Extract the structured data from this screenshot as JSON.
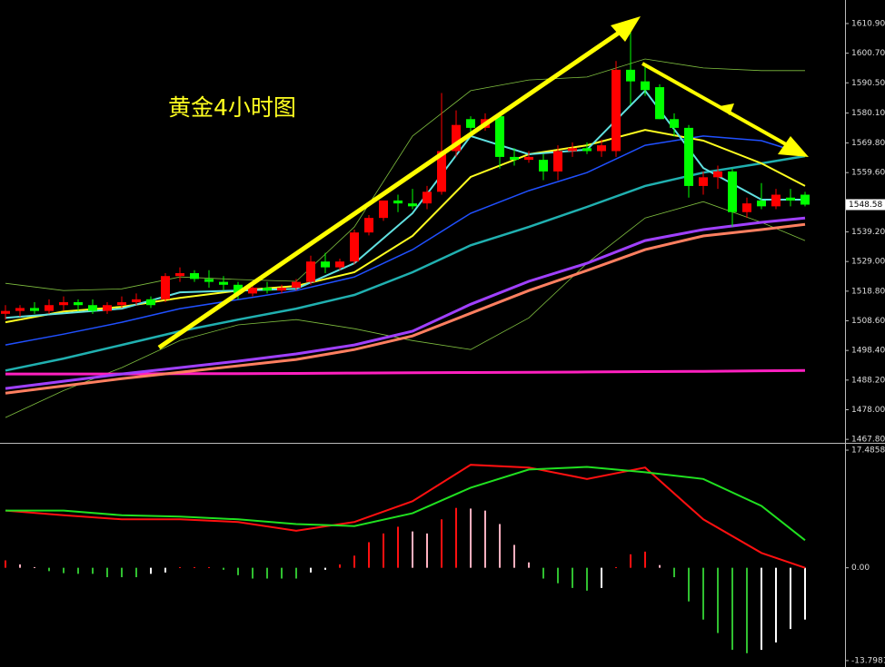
{
  "chart_data": [
    {
      "type": "candlestick",
      "title": "黄金4小时图",
      "xlim": [
        -0.375,
        57.75
      ],
      "ylim": [
        1466.6,
        1619.0
      ],
      "yticks": [
        {
          "value": 1610.9,
          "label": "1610.90"
        },
        {
          "value": 1600.7,
          "label": "1600.70"
        },
        {
          "value": 1590.5,
          "label": "1590.50"
        },
        {
          "value": 1580.1,
          "label": "1580.10"
        },
        {
          "value": 1569.8,
          "label": "1569.80"
        },
        {
          "value": 1559.6,
          "label": "1559.60"
        },
        {
          "value": 1539.2,
          "label": "1539.20"
        },
        {
          "value": 1529,
          "label": "1529.00"
        },
        {
          "value": 1518.8,
          "label": "1518.80"
        },
        {
          "value": 1508.6,
          "label": "1508.60"
        },
        {
          "value": 1498.4,
          "label": "1498.40"
        },
        {
          "value": 1488.2,
          "label": "1488.20"
        },
        {
          "value": 1478,
          "label": "1478.00"
        },
        {
          "value": 1467.8,
          "label": "1467.80"
        }
      ],
      "current_price": {
        "value": 1548.58,
        "label": "1548.58"
      },
      "up_color": "#ff0000",
      "down_color": "#00ff00",
      "candles": {
        "open": [
          1511,
          1512,
          1513,
          1512,
          1514,
          1515,
          1514,
          1512,
          1514,
          1515,
          1516,
          1516,
          1524,
          1525,
          1523,
          1522,
          1521,
          1518,
          1520,
          1519,
          1520,
          1522,
          1529,
          1527,
          1529,
          1539,
          1544,
          1550,
          1549,
          1549,
          1553,
          1567,
          1578,
          1575,
          1579,
          1565,
          1564,
          1564,
          1560,
          1567,
          1568,
          1567,
          1567,
          1595,
          1591,
          1589,
          1578,
          1575,
          1555,
          1558,
          1560,
          1546,
          1550,
          1548,
          1551,
          1552
        ],
        "high": [
          1514,
          1514,
          1515,
          1516,
          1517,
          1516,
          1516,
          1515,
          1517,
          1518,
          1517,
          1525,
          1527,
          1526,
          1526,
          1524,
          1522,
          1521,
          1522,
          1521,
          1523,
          1531,
          1532,
          1530,
          1540,
          1545,
          1550,
          1552,
          1554,
          1555,
          1587,
          1581,
          1579,
          1580,
          1580,
          1568,
          1567,
          1566,
          1569,
          1570,
          1570,
          1571,
          1598,
          1608,
          1596,
          1590,
          1580,
          1576,
          1560,
          1562,
          1561,
          1551,
          1556,
          1554,
          1554,
          1553
        ],
        "low": [
          1509,
          1510,
          1511,
          1511,
          1512,
          1512,
          1511,
          1511,
          1513,
          1514,
          1513,
          1515,
          1522,
          1522,
          1520,
          1519,
          1516,
          1517,
          1518,
          1518,
          1519,
          1521,
          1525,
          1526,
          1528,
          1538,
          1543,
          1546,
          1547,
          1547,
          1552,
          1565,
          1573,
          1574,
          1561,
          1562,
          1563,
          1557,
          1557,
          1565,
          1566,
          1565,
          1565,
          1583,
          1586,
          1578,
          1572,
          1551,
          1552,
          1554,
          1541,
          1544,
          1547,
          1547,
          1548,
          1548
        ],
        "close": [
          1512,
          1513,
          1512,
          1514,
          1515,
          1514,
          1512,
          1514,
          1515,
          1516,
          1514,
          1524,
          1525,
          1523,
          1522,
          1521,
          1518,
          1520,
          1519,
          1520,
          1522,
          1529,
          1527,
          1529,
          1539,
          1544,
          1550,
          1549,
          1548,
          1553,
          1567,
          1576,
          1575,
          1578,
          1565,
          1564,
          1565,
          1560,
          1567,
          1568,
          1567,
          1569,
          1595,
          1591,
          1588,
          1578,
          1575,
          1555,
          1558,
          1560,
          1546,
          1549,
          1548,
          1552,
          1550,
          1548.58
        ]
      },
      "overlays": {
        "x": [
          0,
          4,
          8,
          12,
          16,
          20,
          24,
          28,
          32,
          36,
          40,
          44,
          48,
          52,
          55
        ],
        "series": [
          {
            "color": "#7fbf3f",
            "width": 0.8,
            "values": [
              1521.5,
              1519,
              1519.6,
              1523.7,
              1522.8,
              1522.2,
              1540.9,
              1572.2,
              1587.8,
              1591.5,
              1592.5,
              1598.7,
              1595.6,
              1594.7,
              1594.7
            ]
          },
          {
            "color": "#7fbf3f",
            "width": 0.8,
            "values": [
              1475.3,
              1484.6,
              1492.5,
              1501.8,
              1507.2,
              1509,
              1505.9,
              1501.8,
              1498.7,
              1509.6,
              1528.4,
              1544,
              1549.6,
              1542.5,
              1536.2
            ]
          },
          {
            "color": "#ff20c0",
            "width": 3,
            "values": [
              1490.3,
              1490.3,
              1490.3,
              1490.4,
              1490.4,
              1490.5,
              1490.6,
              1490.7,
              1490.8,
              1490.9,
              1491,
              1491.1,
              1491.2,
              1491.4,
              1491.5
            ]
          },
          {
            "color": "#ff7f60",
            "width": 3,
            "values": [
              1483.7,
              1486.2,
              1488.7,
              1490.9,
              1493.1,
              1495.3,
              1498.7,
              1503.4,
              1511.2,
              1519,
              1525.9,
              1533.1,
              1537.8,
              1540,
              1541.8
            ]
          },
          {
            "color": "#a040ff",
            "width": 3,
            "values": [
              1485.3,
              1487.8,
              1490.3,
              1492.5,
              1494.7,
              1497.2,
              1500.3,
              1505,
              1514.3,
              1522.2,
              1528.4,
              1536.2,
              1540,
              1542.5,
              1544
            ]
          },
          {
            "color": "#20b0b0",
            "width": 2.5,
            "values": [
              1491.5,
              1495.6,
              1500.3,
              1505,
              1509,
              1512.8,
              1517.5,
              1525.3,
              1534.6,
              1540.9,
              1547.8,
              1555,
              1559.6,
              1562.8,
              1565.3
            ]
          },
          {
            "color": "#2050ff",
            "width": 1.5,
            "values": [
              1500.3,
              1504,
              1508.1,
              1512.8,
              1515.9,
              1519,
              1523.7,
              1533.1,
              1545.6,
              1553.4,
              1559.6,
              1569,
              1572.2,
              1570.6,
              1565.9
            ]
          },
          {
            "color": "#ffff20",
            "width": 2,
            "values": [
              1508.1,
              1511.8,
              1513.4,
              1516.5,
              1519,
              1520.6,
              1525.3,
              1537.8,
              1558.1,
              1565.9,
              1569,
              1574.3,
              1570.6,
              1562.8,
              1555
            ]
          },
          {
            "color": "#60e0e0",
            "width": 2,
            "values": [
              1509.6,
              1511.2,
              1512.8,
              1518.4,
              1519,
              1519.6,
              1528.4,
              1545.6,
              1572.2,
              1565.9,
              1567.5,
              1587.8,
              1561.2,
              1550.3,
              1550.3
            ]
          }
        ]
      }
    },
    {
      "type": "bar",
      "xlim": [
        -0.375,
        57.75
      ],
      "ylim": [
        -14.75,
        18.3
      ],
      "yticks": [
        17.4858,
        {
          "value": 0,
          "label": "0.00"
        },
        -13.7981
      ],
      "bar_colors": {
        "up_rising": "#ff1010",
        "up_falling": "#ffb0c0",
        "down_falling": "#30c030",
        "down_rising": "#ffffff"
      },
      "values": [
        1.1,
        0.5,
        0.1,
        -0.5,
        -0.8,
        -0.9,
        -0.9,
        -1.4,
        -1.4,
        -1.4,
        -0.9,
        -0.7,
        0.1,
        0.1,
        0.1,
        -0.3,
        -1.1,
        -1.6,
        -1.6,
        -1.6,
        -1.6,
        -0.7,
        -0.3,
        0.5,
        1.8,
        3.8,
        5.1,
        6.1,
        5.4,
        5.1,
        7.2,
        8.9,
        8.8,
        8.5,
        6.5,
        3.4,
        0.8,
        -1.6,
        -2.3,
        -3,
        -3.4,
        -3,
        0.1,
        2,
        2.4,
        0.4,
        -1.4,
        -5,
        -7.7,
        -9.7,
        -12.2,
        -12.7,
        -12.2,
        -11.1,
        -9.1,
        -7.7
      ],
      "lines": {
        "x": [
          0,
          4,
          8,
          12,
          16,
          20,
          24,
          28,
          32,
          36,
          40,
          44,
          48,
          52,
          55
        ],
        "series": [
          {
            "color": "#ff1010",
            "values": [
              8.5,
              7.8,
              7.2,
              7.2,
              6.8,
              5.5,
              6.8,
              9.9,
              15.3,
              14.9,
              13.2,
              14.9,
              7.2,
              2.2,
              0
            ]
          },
          {
            "color": "#20e020",
            "values": [
              8.5,
              8.5,
              7.8,
              7.6,
              7.2,
              6.5,
              6.2,
              8.1,
              11.9,
              14.6,
              15,
              14.2,
              13.2,
              9.2,
              4.1
            ]
          }
        ]
      }
    }
  ]
}
